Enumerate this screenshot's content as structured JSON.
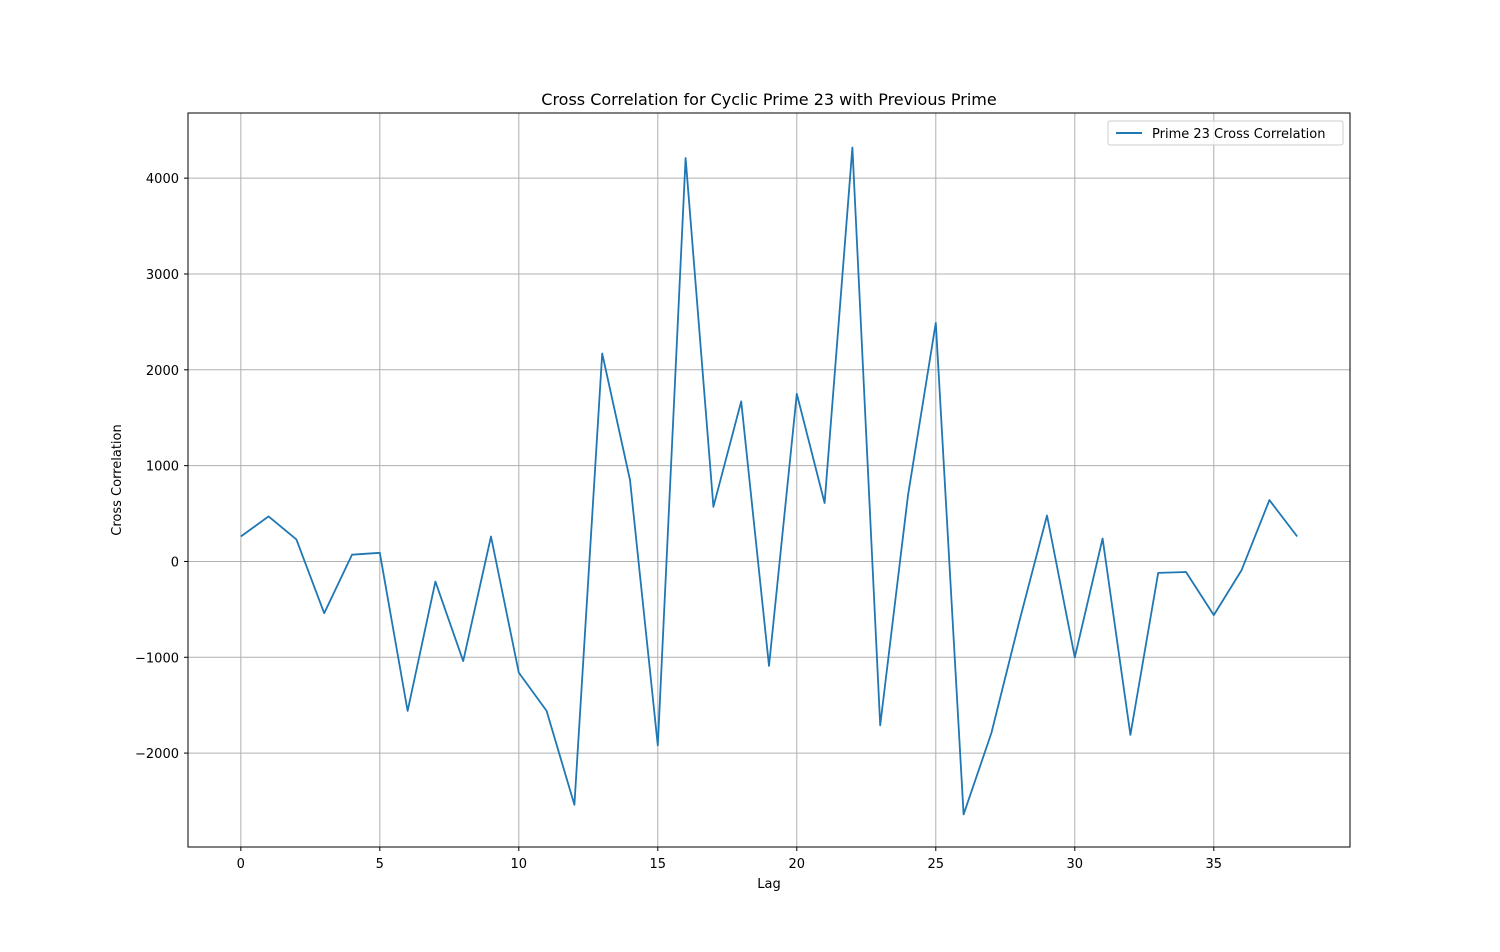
{
  "chart_data": {
    "type": "line",
    "title": "Cross Correlation for Cyclic Prime 23 with Previous Prime",
    "xlabel": "Lag",
    "ylabel": "Cross Correlation",
    "xlim": [
      -1.9,
      39.9
    ],
    "ylim": [
      -2980,
      4680
    ],
    "xticks": [
      0,
      5,
      10,
      15,
      20,
      25,
      30,
      35
    ],
    "yticks": [
      -2000,
      -1000,
      0,
      1000,
      2000,
      3000,
      4000
    ],
    "grid": true,
    "legend_position": "top-right",
    "series": [
      {
        "name": "Prime 23 Cross Correlation",
        "color": "#1f77b4",
        "x": [
          0,
          1,
          2,
          3,
          4,
          5,
          6,
          7,
          8,
          9,
          10,
          11,
          12,
          13,
          14,
          15,
          16,
          17,
          18,
          19,
          20,
          21,
          22,
          23,
          24,
          25,
          26,
          27,
          28,
          29,
          30,
          31,
          32,
          33,
          34,
          35,
          36,
          37,
          38
        ],
        "values": [
          260,
          470,
          230,
          -540,
          70,
          90,
          -1560,
          -210,
          -1040,
          260,
          -1160,
          -1560,
          -2540,
          2170,
          850,
          -1920,
          4210,
          570,
          1670,
          -1090,
          1750,
          610,
          4320,
          -1710,
          690,
          2490,
          -2640,
          -1790,
          -630,
          480,
          -1000,
          240,
          -1810,
          -120,
          -110,
          -560,
          -90,
          640,
          260
        ]
      }
    ]
  }
}
